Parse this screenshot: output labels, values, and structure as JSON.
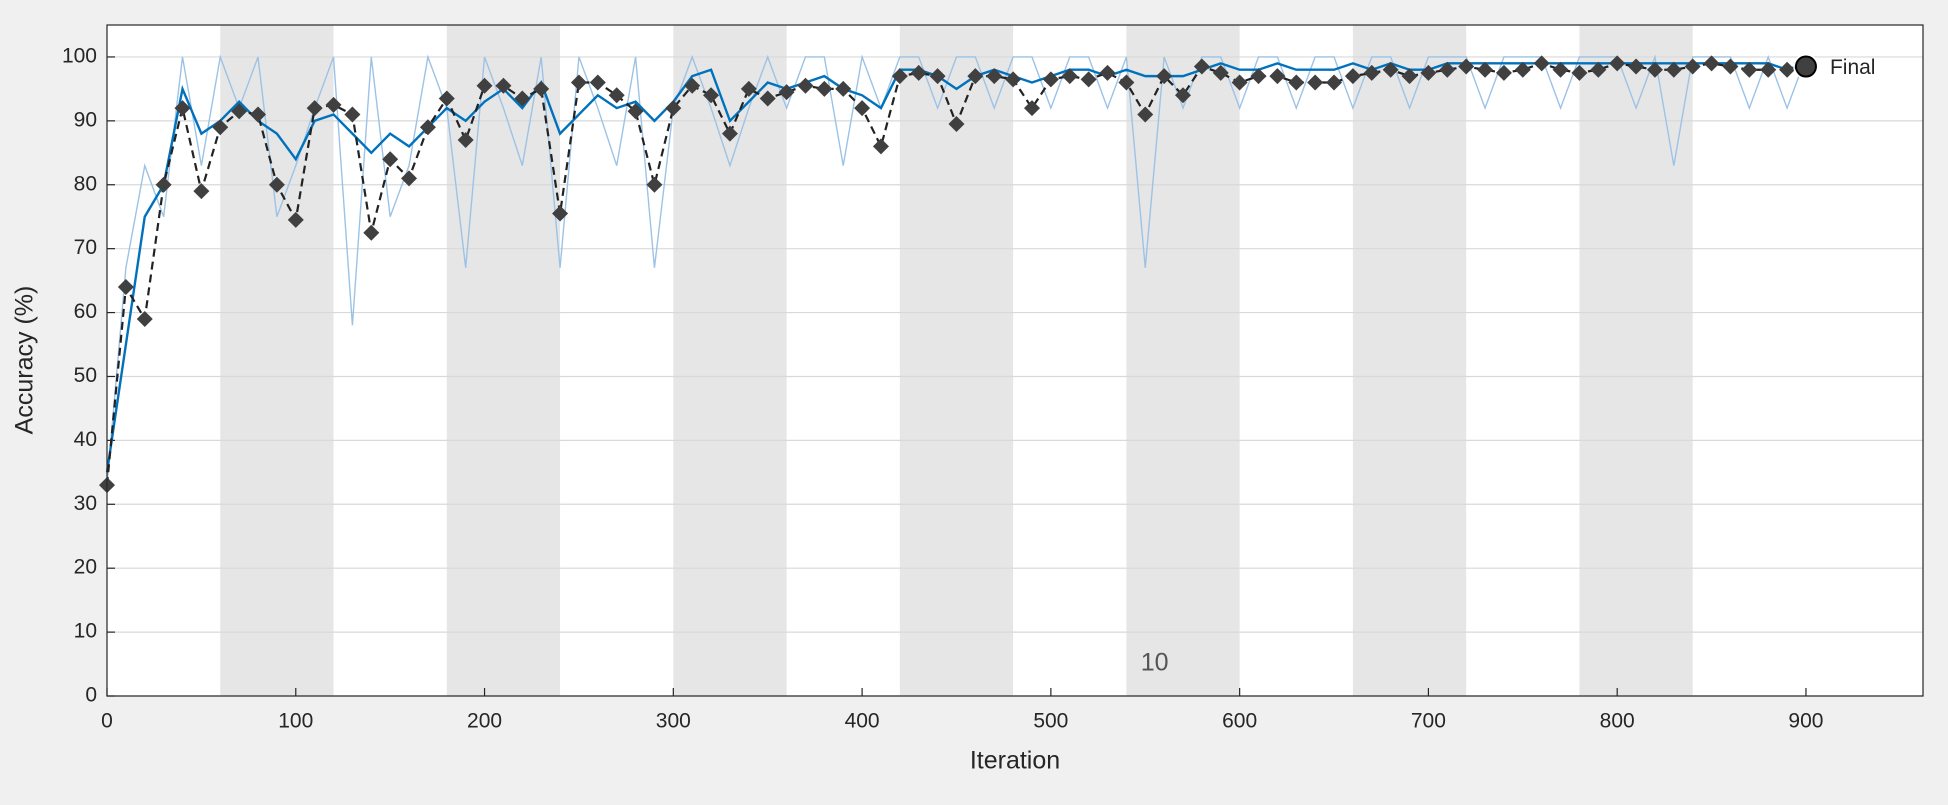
{
  "chart_data": {
    "type": "line",
    "x_label": "Iteration",
    "y_label": "Accuracy (%)",
    "xlim": [
      0,
      962
    ],
    "ylim": [
      0,
      105
    ],
    "xticks": [
      0,
      100,
      200,
      300,
      400,
      500,
      600,
      700,
      800,
      900
    ],
    "yticks": [
      0,
      10,
      20,
      30,
      40,
      50,
      60,
      70,
      80,
      90,
      100
    ],
    "grid": "y",
    "epoch_shading": [
      [
        60,
        120
      ],
      [
        180,
        240
      ],
      [
        300,
        360
      ],
      [
        420,
        480
      ],
      [
        540,
        600
      ],
      [
        660,
        720
      ],
      [
        780,
        840
      ]
    ],
    "shading_color": "#e6e6e6",
    "epoch_label": {
      "text": "10",
      "x": 555,
      "y": 5
    },
    "x": [
      0,
      10,
      20,
      30,
      40,
      50,
      60,
      70,
      80,
      90,
      100,
      110,
      120,
      130,
      140,
      150,
      160,
      170,
      180,
      190,
      200,
      210,
      220,
      230,
      240,
      250,
      260,
      270,
      280,
      290,
      300,
      310,
      320,
      330,
      340,
      350,
      360,
      370,
      380,
      390,
      400,
      410,
      420,
      430,
      440,
      450,
      460,
      470,
      480,
      490,
      500,
      510,
      520,
      530,
      540,
      550,
      560,
      570,
      580,
      590,
      600,
      610,
      620,
      630,
      640,
      650,
      660,
      670,
      680,
      690,
      700,
      710,
      720,
      730,
      740,
      750,
      760,
      770,
      780,
      790,
      800,
      810,
      820,
      830,
      840,
      850,
      860,
      870,
      880,
      890,
      900
    ],
    "series": [
      {
        "style": "raw",
        "color": "#9cc3e6",
        "values": [
          33,
          67,
          83,
          75,
          100,
          83,
          100,
          92,
          100,
          75,
          83,
          92,
          100,
          58,
          100,
          75,
          83,
          100,
          92,
          67,
          100,
          92,
          83,
          100,
          67,
          100,
          92,
          83,
          100,
          67,
          92,
          100,
          92,
          83,
          92,
          100,
          92,
          100,
          100,
          83,
          100,
          92,
          100,
          100,
          92,
          100,
          100,
          92,
          100,
          100,
          92,
          100,
          100,
          92,
          100,
          67,
          100,
          92,
          100,
          100,
          92,
          100,
          100,
          92,
          100,
          100,
          92,
          100,
          100,
          92,
          100,
          100,
          100,
          92,
          100,
          100,
          100,
          92,
          100,
          100,
          100,
          92,
          100,
          83,
          100,
          100,
          100,
          92,
          100,
          92,
          100
        ]
      },
      {
        "style": "smoothed",
        "color": "#0072bd",
        "values": [
          35,
          55,
          75,
          80,
          95,
          88,
          90,
          93,
          90,
          88,
          84,
          90,
          91,
          88,
          85,
          88,
          86,
          89,
          92,
          90,
          93,
          95,
          92,
          96,
          88,
          91,
          94,
          92,
          93,
          90,
          93,
          97,
          98,
          90,
          93,
          96,
          95,
          96,
          97,
          95,
          94,
          92,
          98,
          98,
          97,
          95,
          97,
          98,
          97,
          96,
          97,
          98,
          98,
          97,
          98,
          97,
          97,
          97,
          98,
          99,
          98,
          98,
          99,
          98,
          98,
          98,
          99,
          98,
          99,
          98,
          98,
          99,
          99,
          99,
          99,
          99,
          99,
          99,
          99,
          99,
          99,
          99,
          99,
          99,
          99,
          99,
          99,
          99,
          99,
          98,
          99
        ]
      },
      {
        "style": "validation",
        "color": "#404040",
        "values": [
          33,
          64,
          59,
          80,
          92,
          79,
          89,
          91.5,
          91,
          80,
          74.5,
          92,
          92.5,
          91,
          72.5,
          84,
          81,
          89,
          93.5,
          87,
          95.5,
          95.5,
          93.5,
          95,
          75.5,
          96,
          96,
          94,
          91.5,
          80,
          92,
          95.5,
          94,
          88,
          95,
          93.5,
          94.5,
          95.5,
          95,
          95,
          92,
          86,
          97,
          97.5,
          97,
          89.5,
          97,
          97,
          96.5,
          92,
          96.5,
          97,
          96.5,
          97.5,
          96,
          91,
          97,
          94,
          98.5,
          97.5,
          96,
          97,
          97,
          96,
          96,
          96,
          97,
          97.5,
          98,
          97,
          97.5,
          98,
          98.5,
          98,
          97.5,
          98,
          99,
          98,
          97.5,
          98,
          99,
          98.5,
          98,
          98,
          98.5,
          99,
          98.5,
          98,
          98,
          98,
          98.5
        ]
      }
    ],
    "final": {
      "text": "Final",
      "x": 900,
      "y": 98.5
    }
  }
}
